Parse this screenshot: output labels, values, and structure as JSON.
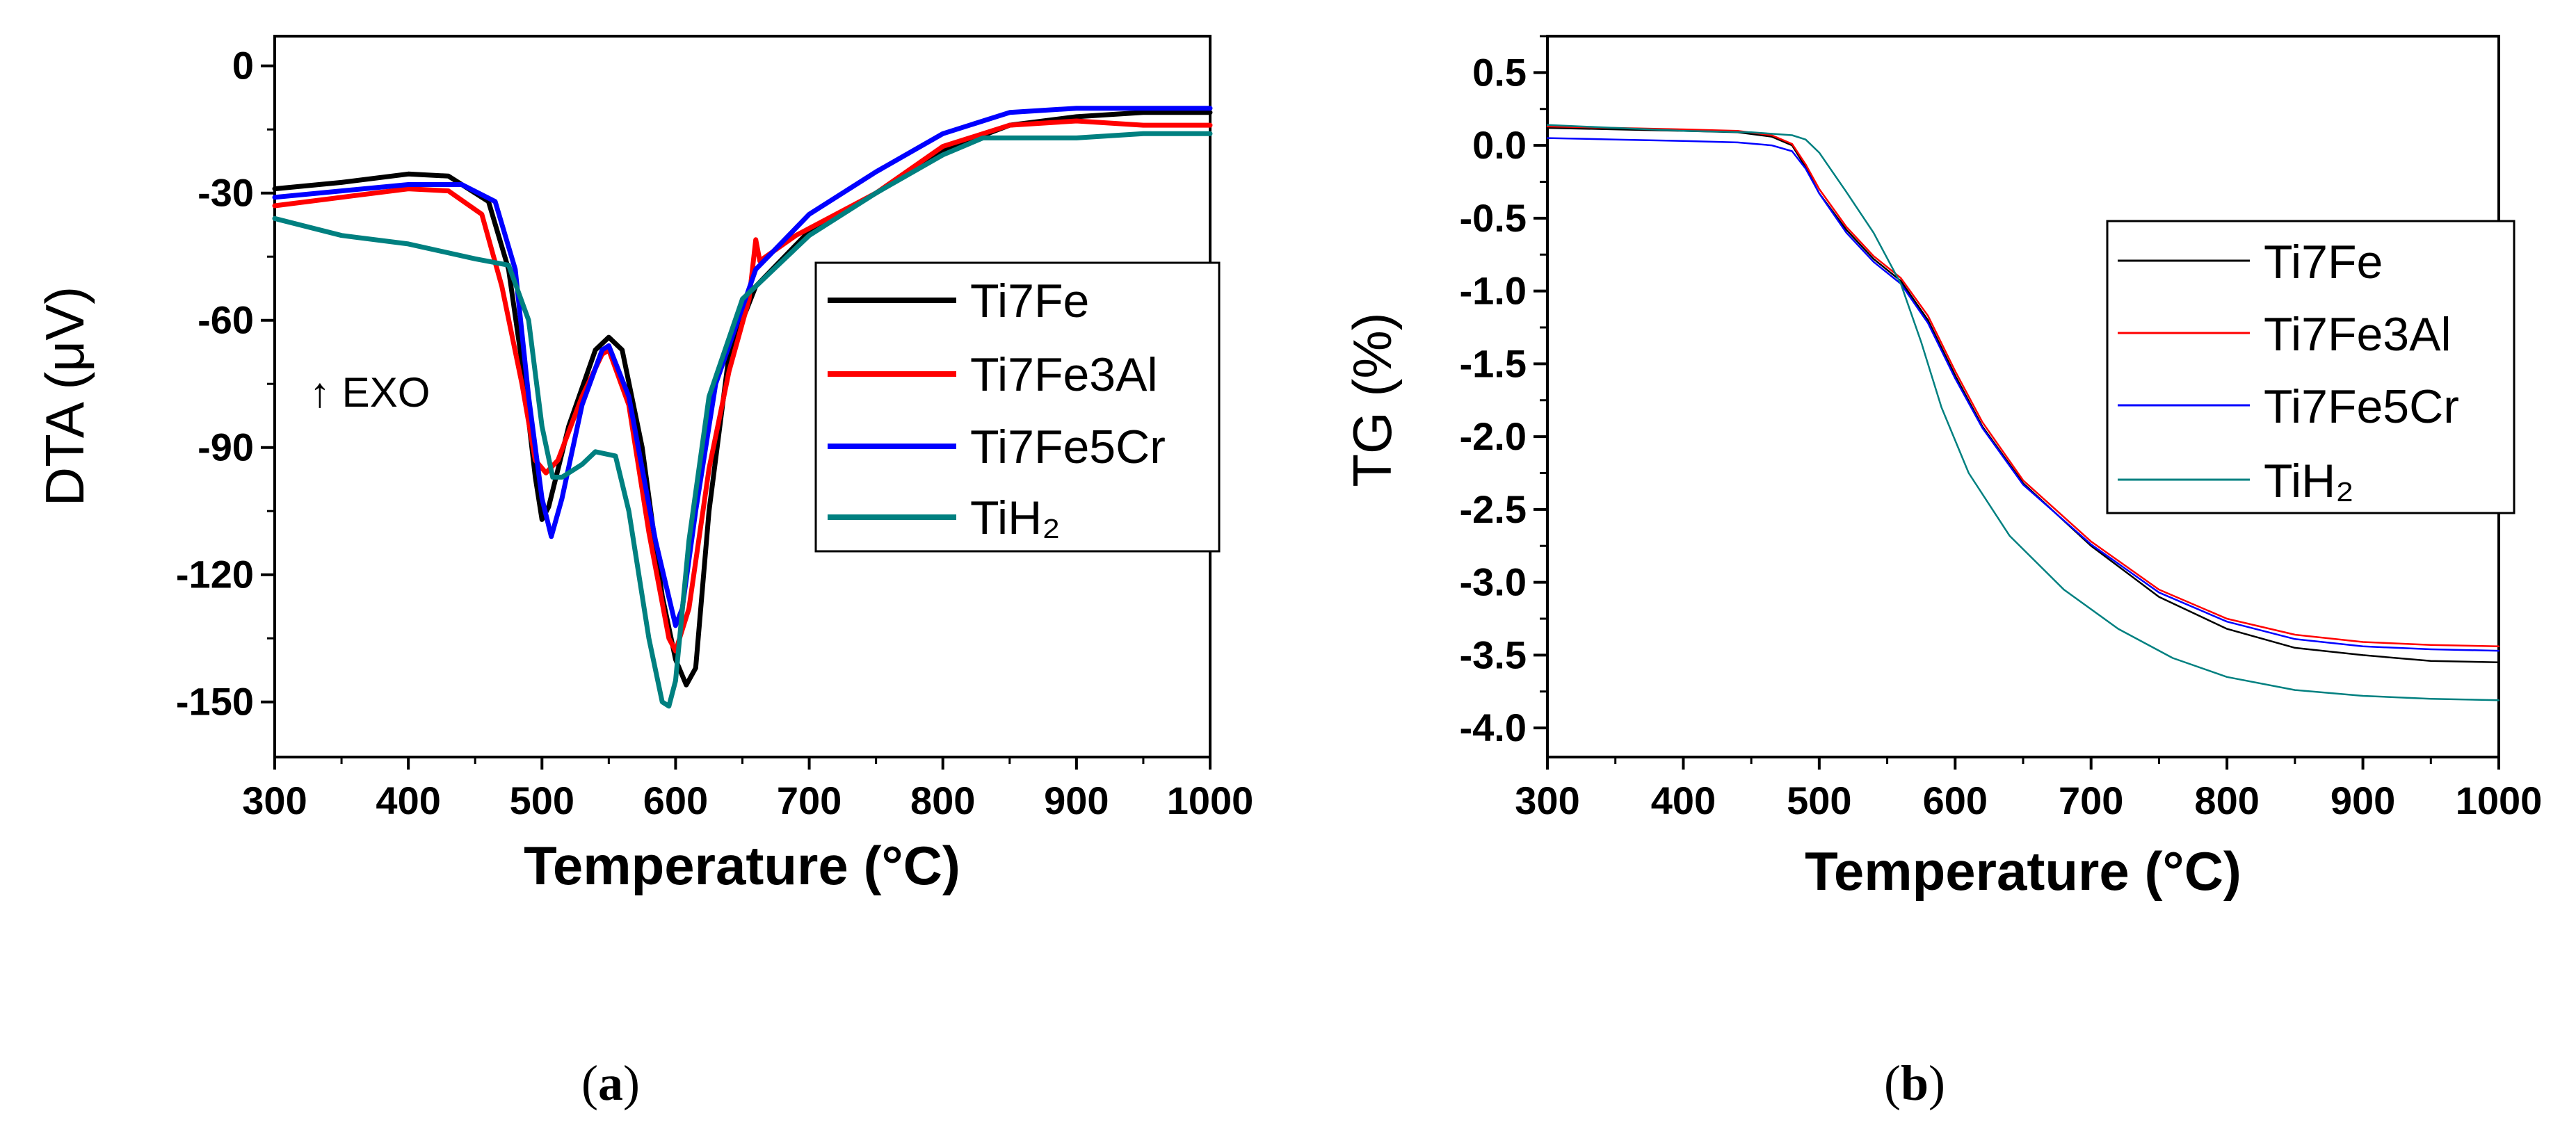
{
  "chart_data": [
    {
      "id": "a",
      "type": "line",
      "panel_label": "(a)",
      "panel_letter": "a",
      "xlabel": "Temperature (°C)",
      "ylabel": "DTA (μV)",
      "xlim": [
        300,
        1000
      ],
      "ylim": [
        -163,
        7
      ],
      "xticks": [
        300,
        400,
        500,
        600,
        700,
        800,
        900,
        1000
      ],
      "yticks": [
        0,
        -30,
        -60,
        -90,
        -120,
        -150
      ],
      "annotation": "↑  EXO",
      "legend_position": "right-center",
      "series": [
        {
          "name": "Ti7Fe",
          "color": "#000000",
          "points": [
            [
              300,
              -29
            ],
            [
              350,
              -27.5
            ],
            [
              400,
              -25.5
            ],
            [
              430,
              -26
            ],
            [
              460,
              -32
            ],
            [
              475,
              -48
            ],
            [
              485,
              -70
            ],
            [
              495,
              -97
            ],
            [
              500,
              -107
            ],
            [
              505,
              -104
            ],
            [
              520,
              -85
            ],
            [
              540,
              -67
            ],
            [
              550,
              -64
            ],
            [
              560,
              -67
            ],
            [
              575,
              -90
            ],
            [
              590,
              -125
            ],
            [
              600,
              -140
            ],
            [
              608,
              -146
            ],
            [
              615,
              -142
            ],
            [
              625,
              -105
            ],
            [
              640,
              -68
            ],
            [
              660,
              -52
            ],
            [
              700,
              -39
            ],
            [
              750,
              -30
            ],
            [
              800,
              -20
            ],
            [
              850,
              -14
            ],
            [
              900,
              -12
            ],
            [
              950,
              -11
            ],
            [
              1000,
              -11
            ]
          ]
        },
        {
          "name": "Ti7Fe3Al",
          "color": "#ff0000",
          "points": [
            [
              300,
              -33
            ],
            [
              350,
              -31
            ],
            [
              400,
              -29
            ],
            [
              430,
              -29.5
            ],
            [
              455,
              -35
            ],
            [
              470,
              -52
            ],
            [
              485,
              -75
            ],
            [
              495,
              -93
            ],
            [
              503,
              -96
            ],
            [
              512,
              -93
            ],
            [
              530,
              -78
            ],
            [
              545,
              -68
            ],
            [
              550,
              -67
            ],
            [
              565,
              -80
            ],
            [
              580,
              -110
            ],
            [
              595,
              -135
            ],
            [
              600,
              -138
            ],
            [
              610,
              -128
            ],
            [
              625,
              -95
            ],
            [
              640,
              -72
            ],
            [
              655,
              -55
            ],
            [
              660,
              -41
            ],
            [
              663,
              -46
            ],
            [
              690,
              -40
            ],
            [
              750,
              -30
            ],
            [
              800,
              -19
            ],
            [
              850,
              -14
            ],
            [
              900,
              -13
            ],
            [
              950,
              -14
            ],
            [
              1000,
              -14
            ]
          ]
        },
        {
          "name": "Ti7Fe5Cr",
          "color": "#0000ff",
          "points": [
            [
              300,
              -31
            ],
            [
              350,
              -29.5
            ],
            [
              400,
              -28
            ],
            [
              440,
              -28
            ],
            [
              465,
              -32
            ],
            [
              480,
              -48
            ],
            [
              490,
              -78
            ],
            [
              500,
              -102
            ],
            [
              507,
              -111
            ],
            [
              515,
              -102
            ],
            [
              530,
              -80
            ],
            [
              545,
              -67
            ],
            [
              550,
              -66
            ],
            [
              565,
              -78
            ],
            [
              585,
              -112
            ],
            [
              600,
              -132
            ],
            [
              605,
              -128
            ],
            [
              615,
              -105
            ],
            [
              630,
              -75
            ],
            [
              660,
              -48
            ],
            [
              700,
              -35
            ],
            [
              750,
              -25
            ],
            [
              800,
              -16
            ],
            [
              850,
              -11
            ],
            [
              900,
              -10
            ],
            [
              950,
              -10
            ],
            [
              1000,
              -10
            ]
          ]
        },
        {
          "name": "TiH₂",
          "color": "#008080",
          "points": [
            [
              300,
              -36
            ],
            [
              350,
              -40
            ],
            [
              400,
              -42
            ],
            [
              450,
              -45.5
            ],
            [
              475,
              -47
            ],
            [
              490,
              -60
            ],
            [
              500,
              -85
            ],
            [
              508,
              -97
            ],
            [
              515,
              -97
            ],
            [
              530,
              -94
            ],
            [
              540,
              -91
            ],
            [
              555,
              -92
            ],
            [
              565,
              -105
            ],
            [
              580,
              -135
            ],
            [
              590,
              -150
            ],
            [
              595,
              -151
            ],
            [
              600,
              -145
            ],
            [
              610,
              -112
            ],
            [
              625,
              -78
            ],
            [
              650,
              -55
            ],
            [
              700,
              -40
            ],
            [
              750,
              -30
            ],
            [
              800,
              -21
            ],
            [
              830,
              -17
            ],
            [
              850,
              -17
            ],
            [
              900,
              -17
            ],
            [
              950,
              -16
            ],
            [
              1000,
              -16
            ]
          ]
        }
      ]
    },
    {
      "id": "b",
      "type": "line",
      "panel_label": "(b)",
      "panel_letter": "b",
      "xlabel": "Temperature (°C)",
      "ylabel": "TG (%)",
      "xlim": [
        300,
        1000
      ],
      "ylim": [
        -4.2,
        0.75
      ],
      "xticks": [
        300,
        400,
        500,
        600,
        700,
        800,
        900,
        1000
      ],
      "yticks": [
        0.5,
        0.0,
        -0.5,
        -1.0,
        -1.5,
        -2.0,
        -2.5,
        -3.0,
        -3.5,
        -4.0
      ],
      "ytick_labels": [
        "0.5",
        "0.0",
        "-0.5",
        "-1.0",
        "-1.5",
        "-2.0",
        "-2.5",
        "-3.0",
        "-3.5",
        "-4.0"
      ],
      "legend_position": "right-upper",
      "series": [
        {
          "name": "Ti7Fe",
          "color": "#000000",
          "points": [
            [
              300,
              0.12
            ],
            [
              350,
              0.11
            ],
            [
              400,
              0.1
            ],
            [
              440,
              0.09
            ],
            [
              465,
              0.06
            ],
            [
              480,
              0.0
            ],
            [
              490,
              -0.15
            ],
            [
              500,
              -0.33
            ],
            [
              520,
              -0.58
            ],
            [
              540,
              -0.78
            ],
            [
              560,
              -0.93
            ],
            [
              580,
              -1.2
            ],
            [
              600,
              -1.58
            ],
            [
              620,
              -1.93
            ],
            [
              650,
              -2.32
            ],
            [
              700,
              -2.75
            ],
            [
              750,
              -3.1
            ],
            [
              800,
              -3.32
            ],
            [
              850,
              -3.45
            ],
            [
              900,
              -3.5
            ],
            [
              950,
              -3.54
            ],
            [
              1000,
              -3.55
            ]
          ]
        },
        {
          "name": "Ti7Fe3Al",
          "color": "#ff0000",
          "points": [
            [
              300,
              0.13
            ],
            [
              350,
              0.12
            ],
            [
              400,
              0.11
            ],
            [
              440,
              0.1
            ],
            [
              465,
              0.07
            ],
            [
              480,
              0.01
            ],
            [
              490,
              -0.13
            ],
            [
              500,
              -0.3
            ],
            [
              520,
              -0.56
            ],
            [
              540,
              -0.76
            ],
            [
              560,
              -0.91
            ],
            [
              580,
              -1.17
            ],
            [
              600,
              -1.55
            ],
            [
              620,
              -1.9
            ],
            [
              650,
              -2.3
            ],
            [
              700,
              -2.72
            ],
            [
              750,
              -3.05
            ],
            [
              800,
              -3.25
            ],
            [
              850,
              -3.36
            ],
            [
              900,
              -3.41
            ],
            [
              950,
              -3.43
            ],
            [
              1000,
              -3.44
            ]
          ]
        },
        {
          "name": "Ti7Fe5Cr",
          "color": "#0000ff",
          "points": [
            [
              300,
              0.05
            ],
            [
              350,
              0.04
            ],
            [
              400,
              0.03
            ],
            [
              440,
              0.02
            ],
            [
              465,
              0.0
            ],
            [
              480,
              -0.04
            ],
            [
              490,
              -0.16
            ],
            [
              500,
              -0.33
            ],
            [
              520,
              -0.6
            ],
            [
              540,
              -0.8
            ],
            [
              560,
              -0.95
            ],
            [
              580,
              -1.22
            ],
            [
              600,
              -1.6
            ],
            [
              620,
              -1.94
            ],
            [
              650,
              -2.33
            ],
            [
              700,
              -2.74
            ],
            [
              750,
              -3.07
            ],
            [
              800,
              -3.27
            ],
            [
              850,
              -3.39
            ],
            [
              900,
              -3.44
            ],
            [
              950,
              -3.46
            ],
            [
              1000,
              -3.47
            ]
          ]
        },
        {
          "name": "TiH₂",
          "color": "#008080",
          "points": [
            [
              300,
              0.14
            ],
            [
              350,
              0.12
            ],
            [
              400,
              0.1
            ],
            [
              450,
              0.09
            ],
            [
              480,
              0.07
            ],
            [
              490,
              0.04
            ],
            [
              500,
              -0.05
            ],
            [
              520,
              -0.32
            ],
            [
              540,
              -0.6
            ],
            [
              560,
              -0.95
            ],
            [
              575,
              -1.35
            ],
            [
              590,
              -1.8
            ],
            [
              610,
              -2.25
            ],
            [
              640,
              -2.68
            ],
            [
              680,
              -3.05
            ],
            [
              720,
              -3.32
            ],
            [
              760,
              -3.52
            ],
            [
              800,
              -3.65
            ],
            [
              850,
              -3.74
            ],
            [
              900,
              -3.78
            ],
            [
              950,
              -3.8
            ],
            [
              1000,
              -3.81
            ]
          ]
        }
      ]
    }
  ]
}
